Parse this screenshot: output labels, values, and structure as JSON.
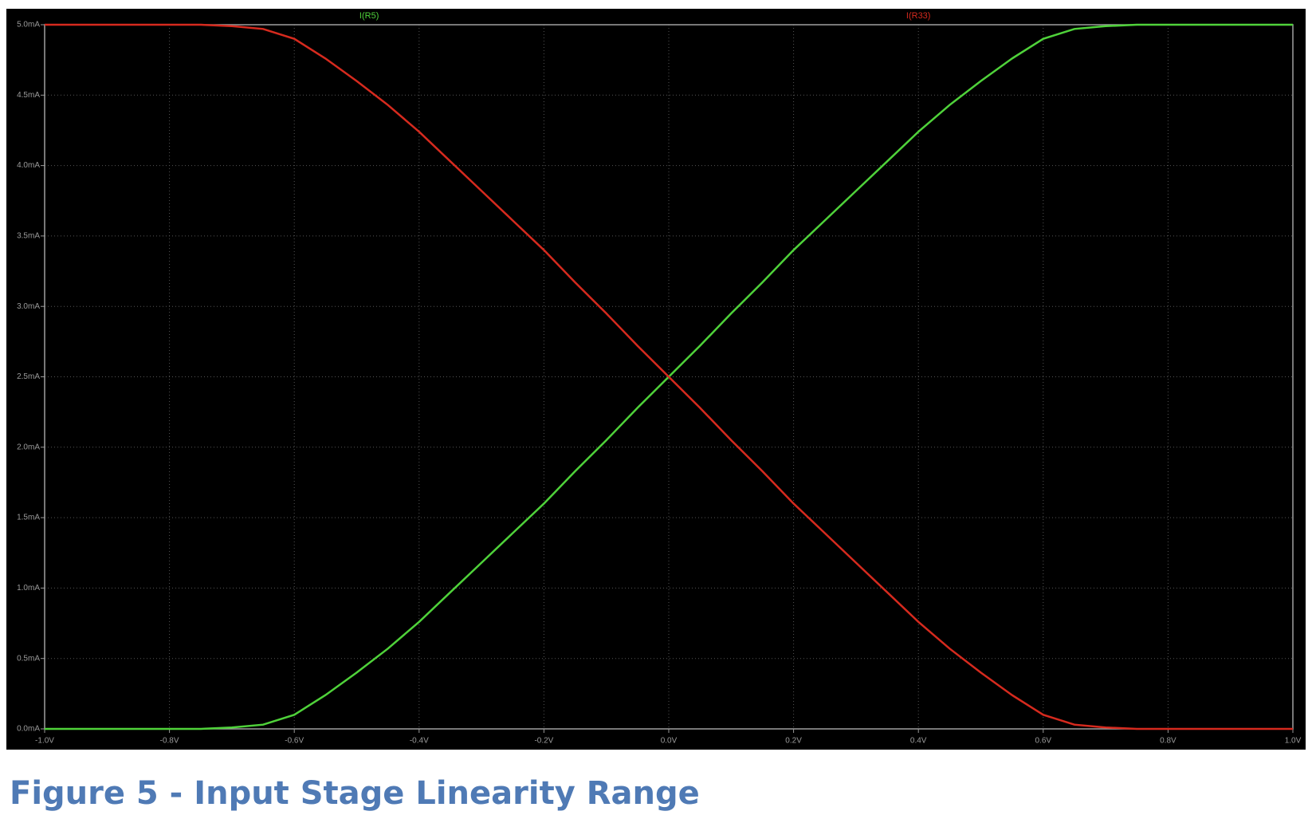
{
  "chart_data": {
    "type": "line",
    "caption": "Figure 5 - Input Stage Linearity Range",
    "x": [
      -1,
      -0.95,
      -0.9,
      -0.85,
      -0.8,
      -0.75,
      -0.7,
      -0.65,
      -0.6,
      -0.55,
      -0.5,
      -0.45,
      -0.4,
      -0.35,
      -0.3,
      -0.25,
      -0.2,
      -0.15,
      -0.1,
      -0.05,
      0,
      0.05,
      0.1,
      0.15,
      0.2,
      0.25,
      0.3,
      0.35,
      0.4,
      0.45,
      0.5,
      0.55,
      0.6,
      0.65,
      0.7,
      0.75,
      0.8,
      0.85,
      0.9,
      0.95,
      1
    ],
    "series": [
      {
        "name": "I(R5)",
        "color": "#4fd23a",
        "values": [
          0,
          0,
          0,
          0,
          0,
          0,
          0.01,
          0.03,
          0.1,
          0.24,
          0.4,
          0.57,
          0.76,
          0.97,
          1.18,
          1.39,
          1.6,
          1.83,
          2.05,
          2.28,
          2.5,
          2.72,
          2.95,
          3.17,
          3.4,
          3.61,
          3.82,
          4.03,
          4.24,
          4.43,
          4.6,
          4.76,
          4.9,
          4.97,
          4.99,
          5,
          5,
          5,
          5,
          5,
          5
        ]
      },
      {
        "name": "I(R33)",
        "color": "#d62a1e",
        "values": [
          5,
          5,
          5,
          5,
          5,
          5,
          4.99,
          4.97,
          4.9,
          4.76,
          4.6,
          4.43,
          4.24,
          4.03,
          3.82,
          3.61,
          3.4,
          3.17,
          2.95,
          2.72,
          2.5,
          2.28,
          2.05,
          1.83,
          1.6,
          1.39,
          1.18,
          0.97,
          0.76,
          0.57,
          0.4,
          0.24,
          0.1,
          0.03,
          0.01,
          0,
          0,
          0,
          0,
          0,
          0
        ]
      }
    ],
    "xlim": [
      -1,
      1
    ],
    "ylim": [
      0,
      5
    ],
    "xticks": [
      {
        "value": -1,
        "label": "-1.0V"
      },
      {
        "value": -0.8,
        "label": "-0.8V"
      },
      {
        "value": -0.6,
        "label": "-0.6V"
      },
      {
        "value": -0.4,
        "label": "-0.4V"
      },
      {
        "value": -0.2,
        "label": "-0.2V"
      },
      {
        "value": 0,
        "label": "0.0V"
      },
      {
        "value": 0.2,
        "label": "0.2V"
      },
      {
        "value": 0.4,
        "label": "0.4V"
      },
      {
        "value": 0.6,
        "label": "0.6V"
      },
      {
        "value": 0.8,
        "label": "0.8V"
      },
      {
        "value": 1,
        "label": "1.0V"
      }
    ],
    "yticks": [
      {
        "value": 0,
        "label": "0.0mA"
      },
      {
        "value": 0.5,
        "label": "0.5mA"
      },
      {
        "value": 1,
        "label": "1.0mA"
      },
      {
        "value": 1.5,
        "label": "1.5mA"
      },
      {
        "value": 2,
        "label": "2.0mA"
      },
      {
        "value": 2.5,
        "label": "2.5mA"
      },
      {
        "value": 3,
        "label": "3.0mA"
      },
      {
        "value": 3.5,
        "label": "3.5mA"
      },
      {
        "value": 4,
        "label": "4.0mA"
      },
      {
        "value": 4.5,
        "label": "4.5mA"
      },
      {
        "value": 5,
        "label": "5.0mA"
      }
    ],
    "grid": true
  }
}
